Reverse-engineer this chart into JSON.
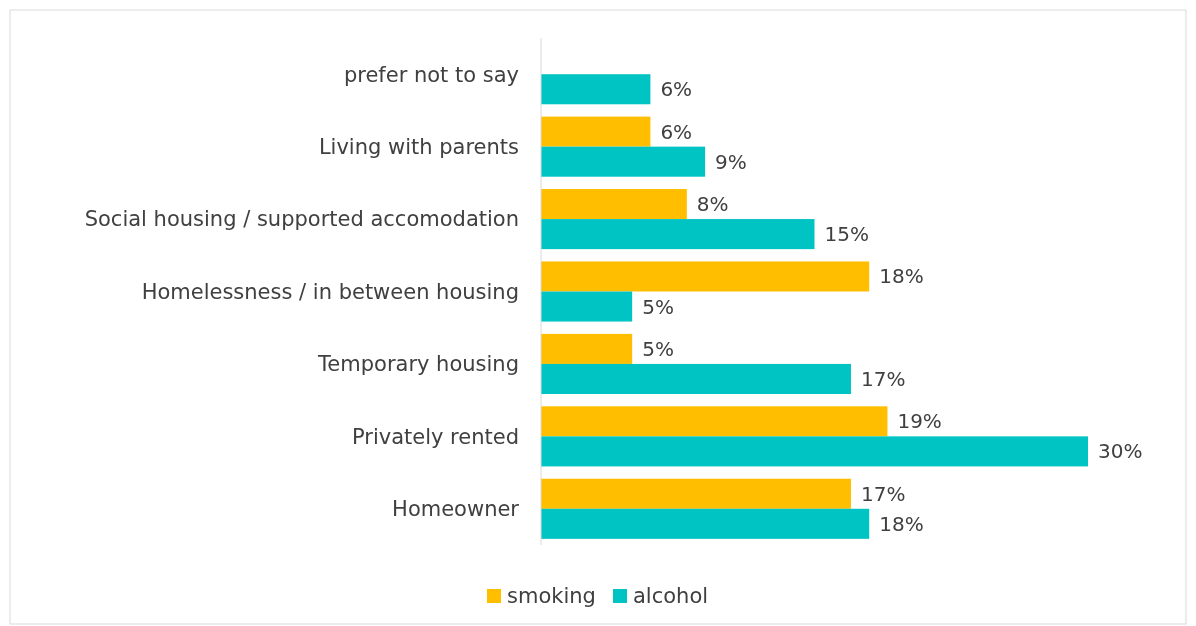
{
  "chart_data": {
    "type": "bar",
    "orientation": "horizontal",
    "categories": [
      "prefer not to say",
      "Living with parents",
      "Social housing / supported accomodation",
      "Homelessness / in between housing",
      "Temporary housing",
      "Privately rented",
      "Homeowner"
    ],
    "series": [
      {
        "name": "smoking",
        "color": "#ffbf00",
        "values": [
          null,
          6,
          8,
          18,
          5,
          19,
          17
        ],
        "value_labels": [
          null,
          "6%",
          "8%",
          "18%",
          "5%",
          "19%",
          "17%"
        ]
      },
      {
        "name": "alcohol",
        "color": "#00c4c4",
        "values": [
          6,
          9,
          15,
          5,
          17,
          30,
          18
        ],
        "value_labels": [
          "6%",
          "9%",
          "15%",
          "5%",
          "17%",
          "30%",
          "18%"
        ]
      }
    ],
    "legend": "bottom",
    "grid": false
  }
}
